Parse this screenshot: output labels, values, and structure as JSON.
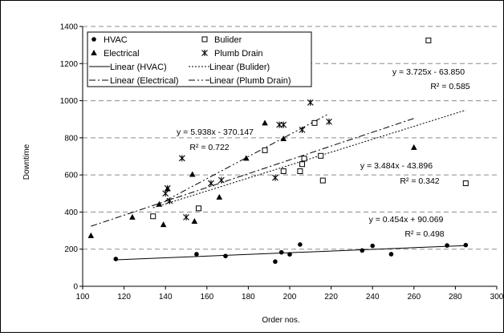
{
  "chart_data": {
    "type": "scatter",
    "title": "",
    "xlabel": "Order nos.",
    "ylabel": "Downtime",
    "xlim": [
      100,
      300
    ],
    "ylim": [
      0,
      1400
    ],
    "x_ticks": [
      "100",
      "120",
      "140",
      "160",
      "180",
      "200",
      "220",
      "240",
      "260",
      "280",
      "300"
    ],
    "y_ticks": [
      "0",
      "200",
      "400",
      "600",
      "800",
      "1000",
      "1200",
      "1400"
    ],
    "grid": "horizontal dashed",
    "legend_position": "top",
    "series": [
      {
        "name": "HVAC",
        "marker": "circle-filled",
        "points": [
          [
            116,
            147
          ],
          [
            155,
            173
          ],
          [
            169,
            163
          ],
          [
            193,
            133
          ],
          [
            196,
            183
          ],
          [
            200,
            172
          ],
          [
            205,
            225
          ],
          [
            235,
            193
          ],
          [
            240,
            218
          ],
          [
            249,
            173
          ],
          [
            276,
            220
          ],
          [
            285,
            222
          ]
        ]
      },
      {
        "name": "Bulider",
        "marker": "square-open",
        "points": [
          [
            134,
            377
          ],
          [
            156,
            420
          ],
          [
            188,
            733
          ],
          [
            197,
            620
          ],
          [
            205,
            620
          ],
          [
            206,
            658
          ],
          [
            207,
            688
          ],
          [
            212,
            880
          ],
          [
            215,
            703
          ],
          [
            216,
            570
          ],
          [
            267,
            1325
          ],
          [
            285,
            555
          ]
        ]
      },
      {
        "name": "Electrical",
        "marker": "triangle-filled",
        "points": [
          [
            104,
            273
          ],
          [
            124,
            372
          ],
          [
            137,
            442
          ],
          [
            139,
            332
          ],
          [
            141,
            525
          ],
          [
            153,
            603
          ],
          [
            154,
            350
          ],
          [
            166,
            480
          ],
          [
            179,
            690
          ],
          [
            188,
            880
          ],
          [
            197,
            795
          ],
          [
            260,
            748
          ]
        ]
      },
      {
        "name": "Plumb Drain",
        "marker": "star",
        "points": [
          [
            140,
            500
          ],
          [
            141,
            528
          ],
          [
            142,
            460
          ],
          [
            148,
            690
          ],
          [
            150,
            372
          ],
          [
            162,
            555
          ],
          [
            167,
            572
          ],
          [
            193,
            585
          ],
          [
            195,
            870
          ],
          [
            197,
            870
          ],
          [
            206,
            843
          ],
          [
            210,
            990
          ],
          [
            219,
            887
          ]
        ]
      }
    ],
    "trendlines": [
      {
        "name": "Linear (HVAC)",
        "series": "HVAC",
        "slope": 0.454,
        "intercept": 90.069,
        "x_range": [
          116,
          285
        ],
        "style": "solid"
      },
      {
        "name": "Linear (Bulider)",
        "series": "Bulider",
        "slope": 3.484,
        "intercept": -43.896,
        "x_range": [
          134,
          285
        ],
        "style": "dotted"
      },
      {
        "name": "Linear (Electrical)",
        "series": "Electrical",
        "slope": 3.725,
        "intercept": -63.85,
        "x_range": [
          104,
          260
        ],
        "style": "dash-dot"
      },
      {
        "name": "Linear (Plumb Drain)",
        "series": "Plumb Drain",
        "slope": 5.938,
        "intercept": -370.147,
        "x_range": [
          140,
          219
        ],
        "style": "dash-dot-dot"
      }
    ],
    "annotations": [
      {
        "equation": "y = 3.725x - 63.850",
        "r2": "R² = 0.585"
      },
      {
        "equation": "y = 5.938x - 370.147",
        "r2": "R² = 0.722"
      },
      {
        "equation": "y = 3.484x - 43.896",
        "r2": "R² = 0.342"
      },
      {
        "equation": "y = 0.454x + 90.069",
        "r2": "R² = 0.498"
      }
    ]
  }
}
